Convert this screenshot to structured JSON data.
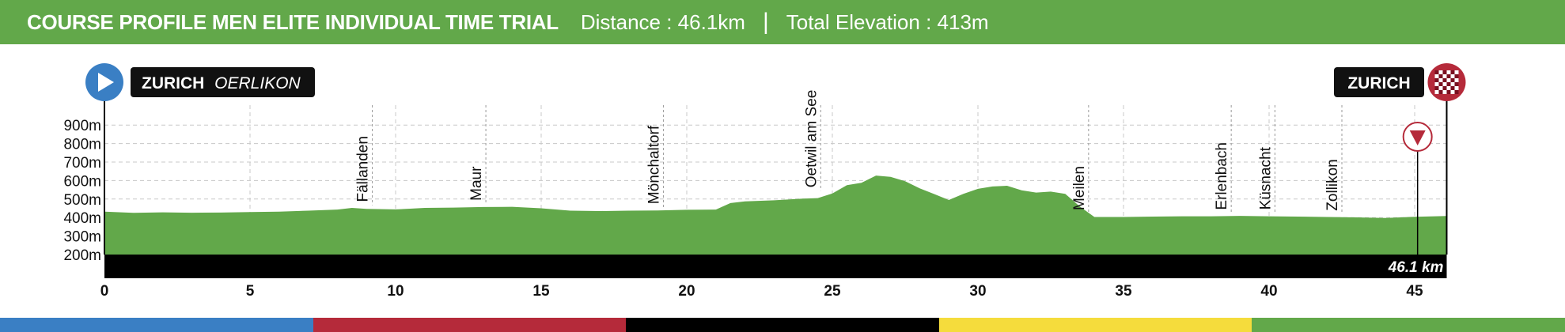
{
  "header": {
    "title": "COURSE PROFILE MEN ELITE INDIVIDUAL TIME TRIAL",
    "distance": "Distance : 46.1km",
    "separator": "|",
    "elevation": "Total Elevation : 413m"
  },
  "start": {
    "city": "ZURICH",
    "district": "OERLIKON"
  },
  "finish": {
    "city": "ZURICH"
  },
  "finish_distance_label": "46.1 km",
  "colors": {
    "header": "#62a84a",
    "profile": "#62a84a",
    "start_marker": "#3a7fc4",
    "finish_marker": "#b52a3a",
    "stripes": [
      "#3a7fc4",
      "#b52a3a",
      "#000000",
      "#f5dc3c",
      "#62a84a"
    ]
  },
  "chart_data": {
    "type": "area",
    "title": "COURSE PROFILE MEN ELITE INDIVIDUAL TIME TRIAL",
    "xlabel": "",
    "ylabel": "",
    "xlim": [
      0,
      46.1
    ],
    "ylim": [
      200,
      1000
    ],
    "x_ticks": [
      0,
      5,
      10,
      15,
      20,
      25,
      30,
      35,
      40,
      45
    ],
    "y_ticks": [
      200,
      300,
      400,
      500,
      600,
      700,
      800,
      900
    ],
    "y_tick_labels": [
      "200m",
      "300m",
      "400m",
      "500m",
      "600m",
      "700m",
      "800m",
      "900m"
    ],
    "grid": true,
    "profile": {
      "x": [
        0,
        1,
        2,
        3,
        4,
        5,
        6,
        7,
        8,
        8.5,
        9,
        10,
        10.5,
        11,
        12,
        13,
        14,
        15,
        16,
        17,
        18,
        19,
        20,
        21,
        21.5,
        22,
        23,
        24,
        24.5,
        25,
        25.5,
        26,
        26.5,
        27,
        27.5,
        28,
        28.5,
        29,
        29.5,
        30,
        30.5,
        31,
        31.5,
        32,
        32.5,
        33,
        33.5,
        34,
        35,
        36,
        37,
        38,
        39,
        40,
        41,
        42,
        43,
        44,
        45,
        46.1
      ],
      "y": [
        432,
        425,
        428,
        426,
        427,
        430,
        432,
        437,
        443,
        452,
        447,
        444,
        448,
        452,
        454,
        457,
        458,
        450,
        437,
        435,
        437,
        438,
        442,
        443,
        478,
        487,
        493,
        502,
        505,
        530,
        575,
        588,
        627,
        620,
        596,
        558,
        527,
        495,
        528,
        555,
        568,
        572,
        547,
        535,
        540,
        528,
        460,
        403,
        403,
        405,
        407,
        407,
        409,
        407,
        405,
        403,
        401,
        398,
        404,
        408
      ]
    },
    "places": [
      {
        "name": "Fällanden",
        "x": 9.2,
        "elevation": 450
      },
      {
        "name": "Maur",
        "x": 13.1,
        "elevation": 457
      },
      {
        "name": "Mönchaltorf",
        "x": 19.2,
        "elevation": 439
      },
      {
        "name": "Oetwil am See",
        "x": 24.6,
        "elevation": 528
      },
      {
        "name": "Meilen",
        "x": 33.8,
        "elevation": 405
      },
      {
        "name": "Erlenbach",
        "x": 38.7,
        "elevation": 407
      },
      {
        "name": "Küsnacht",
        "x": 40.2,
        "elevation": 408
      },
      {
        "name": "Zollikon",
        "x": 42.5,
        "elevation": 402
      }
    ],
    "last_km_marker": {
      "x": 45.1
    }
  }
}
